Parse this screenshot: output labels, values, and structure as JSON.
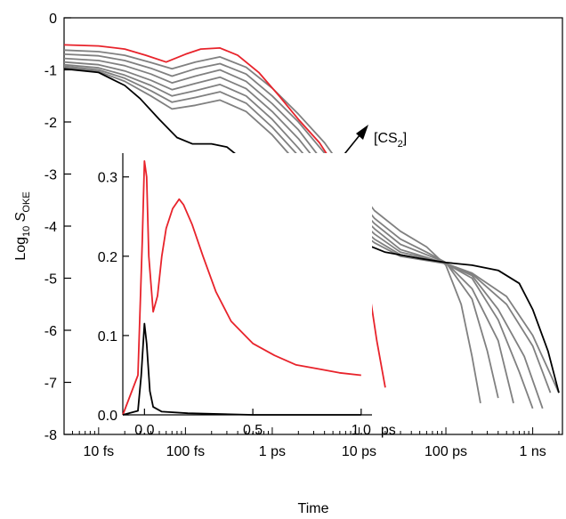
{
  "chart_data": [
    {
      "type": "line",
      "panel": "main",
      "xlabel": "Time",
      "ylabel_main": "Log",
      "ylabel_sub": "10",
      "ylabel_var": "S",
      "ylabel_var_sub": "OKE",
      "x_scale": "log",
      "x_unit": "s",
      "xlim": [
        4e-15,
        2.2e-09
      ],
      "ylim": [
        -8,
        0
      ],
      "y_ticks": [
        "0",
        "-1",
        "-2",
        "-3",
        "-4",
        "-5",
        "-6",
        "-7",
        "-8"
      ],
      "y_tick_values": [
        0,
        -1,
        -2,
        -3,
        -4,
        -5,
        -6,
        -7,
        -8
      ],
      "x_ticks": [
        "10 fs",
        "100 fs",
        "1 ps",
        "10 ps",
        "100 ps",
        "1 ns"
      ],
      "x_tick_values": [
        1e-14,
        1e-13,
        1e-12,
        1e-11,
        1e-10,
        1e-09
      ],
      "annotation": {
        "text": "[CS",
        "sub": "2",
        "close": "]"
      },
      "grid": false,
      "colors": {
        "red": "#e8232b",
        "black": "#000000",
        "gray": "#808080"
      },
      "series": [
        {
          "color": "red",
          "x": [
            4e-15,
            1e-14,
            2e-14,
            3.5e-14,
            6e-14,
            1e-13,
            1.5e-13,
            2.5e-13,
            4e-13,
            7e-13,
            1.2e-12,
            2e-12,
            3.5e-12,
            6e-12,
            8e-12,
            1e-11,
            1.3e-11,
            1.6e-11,
            2e-11
          ],
          "y": [
            -0.52,
            -0.54,
            -0.6,
            -0.72,
            -0.85,
            -0.7,
            -0.6,
            -0.58,
            -0.72,
            -1.05,
            -1.5,
            -1.95,
            -2.4,
            -3.0,
            -3.5,
            -4.2,
            -5.2,
            -6.2,
            -7.1
          ]
        },
        {
          "color": "gray",
          "x": [
            4e-15,
            1e-14,
            2e-14,
            4e-14,
            7e-14,
            1.3e-13,
            2.5e-13,
            5e-13,
            1e-12,
            2e-12,
            4e-12,
            8e-12,
            1.5e-11,
            3e-11,
            6e-11,
            1e-10,
            1.5e-10,
            2e-10,
            2.5e-10
          ],
          "y": [
            -0.62,
            -0.65,
            -0.72,
            -0.86,
            -0.98,
            -0.85,
            -0.75,
            -0.95,
            -1.35,
            -1.85,
            -2.4,
            -3.1,
            -3.7,
            -4.1,
            -4.4,
            -4.75,
            -5.5,
            -6.5,
            -7.4
          ]
        },
        {
          "color": "gray",
          "x": [
            4e-15,
            1e-14,
            2e-14,
            4e-14,
            7e-14,
            1.3e-13,
            2.5e-13,
            5e-13,
            1e-12,
            2e-12,
            4e-12,
            8e-12,
            1.5e-11,
            3e-11,
            6e-11,
            1e-10,
            2e-10,
            3e-10,
            4e-10
          ],
          "y": [
            -0.7,
            -0.73,
            -0.82,
            -0.97,
            -1.12,
            -0.98,
            -0.88,
            -1.08,
            -1.5,
            -2.0,
            -2.6,
            -3.3,
            -3.85,
            -4.25,
            -4.5,
            -4.7,
            -5.4,
            -6.4,
            -7.3
          ]
        },
        {
          "color": "gray",
          "x": [
            4e-15,
            1e-14,
            2e-14,
            4e-14,
            7e-14,
            1.3e-13,
            2.5e-13,
            5e-13,
            1e-12,
            2e-12,
            4e-12,
            8e-12,
            1.5e-11,
            3e-11,
            6e-11,
            1e-10,
            2e-10,
            4e-10,
            6e-10
          ],
          "y": [
            -0.78,
            -0.82,
            -0.92,
            -1.08,
            -1.25,
            -1.12,
            -1.0,
            -1.22,
            -1.65,
            -2.15,
            -2.8,
            -3.45,
            -3.95,
            -4.35,
            -4.55,
            -4.7,
            -5.2,
            -6.2,
            -7.4
          ]
        },
        {
          "color": "gray",
          "x": [
            4e-15,
            1e-14,
            2e-14,
            4e-14,
            7e-14,
            1.3e-13,
            2.5e-13,
            5e-13,
            1e-12,
            2e-12,
            4e-12,
            8e-12,
            1.5e-11,
            3e-11,
            6e-11,
            1e-10,
            2e-10,
            4e-10,
            7e-10,
            1e-09
          ],
          "y": [
            -0.85,
            -0.9,
            -1.02,
            -1.2,
            -1.38,
            -1.26,
            -1.14,
            -1.36,
            -1.8,
            -2.32,
            -2.95,
            -3.6,
            -4.05,
            -4.45,
            -4.6,
            -4.72,
            -5.0,
            -5.8,
            -6.8,
            -7.5
          ]
        },
        {
          "color": "gray",
          "x": [
            4e-15,
            1e-14,
            2e-14,
            4e-14,
            7e-14,
            1.3e-13,
            2.5e-13,
            5e-13,
            1e-12,
            2e-12,
            4e-12,
            8e-12,
            1.5e-11,
            3e-11,
            6e-11,
            1e-10,
            2e-10,
            4e-10,
            8e-10,
            1.3e-09
          ],
          "y": [
            -0.9,
            -0.96,
            -1.1,
            -1.3,
            -1.5,
            -1.4,
            -1.28,
            -1.5,
            -1.95,
            -2.5,
            -3.1,
            -3.72,
            -4.15,
            -4.5,
            -4.62,
            -4.72,
            -4.95,
            -5.6,
            -6.5,
            -7.5
          ]
        },
        {
          "color": "gray",
          "x": [
            4e-15,
            1e-14,
            2e-14,
            4e-14,
            7e-14,
            1.3e-13,
            2.5e-13,
            5e-13,
            1e-12,
            2e-12,
            4e-12,
            8e-12,
            1.5e-11,
            3e-11,
            6e-11,
            1e-10,
            2e-10,
            5e-10,
            1e-09,
            1.6e-09
          ],
          "y": [
            -0.93,
            -1.0,
            -1.16,
            -1.4,
            -1.62,
            -1.53,
            -1.42,
            -1.64,
            -2.1,
            -2.65,
            -3.25,
            -3.85,
            -4.25,
            -4.55,
            -4.65,
            -4.72,
            -4.92,
            -5.5,
            -6.3,
            -7.2
          ]
        },
        {
          "color": "gray",
          "x": [
            4e-15,
            1e-14,
            2e-14,
            4e-14,
            7e-14,
            1.3e-13,
            2.5e-13,
            5e-13,
            1e-12,
            2e-12,
            4e-12,
            8e-12,
            1.5e-11,
            3e-11,
            6e-11,
            1e-10,
            2e-10,
            5e-10,
            1e-09,
            2e-09
          ],
          "y": [
            -0.95,
            -1.03,
            -1.22,
            -1.5,
            -1.75,
            -1.68,
            -1.58,
            -1.8,
            -2.25,
            -2.82,
            -3.4,
            -3.95,
            -4.32,
            -4.58,
            -4.66,
            -4.72,
            -4.9,
            -5.35,
            -6.1,
            -7.2
          ]
        },
        {
          "color": "black",
          "x": [
            4e-15,
            1e-14,
            2e-14,
            3e-14,
            5e-14,
            8e-14,
            1.2e-13,
            2e-13,
            3e-13,
            5e-13,
            8e-13,
            1.2e-12,
            2e-12,
            3e-12,
            5e-12,
            1e-11,
            2e-11,
            5e-11,
            1e-10,
            2e-10,
            4e-10,
            7e-10,
            1e-09,
            1.5e-09,
            2e-09
          ],
          "y": [
            -0.98,
            -1.05,
            -1.3,
            -1.55,
            -1.95,
            -2.3,
            -2.42,
            -2.42,
            -2.48,
            -2.78,
            -3.1,
            -3.35,
            -3.6,
            -3.85,
            -4.05,
            -4.3,
            -4.5,
            -4.62,
            -4.7,
            -4.75,
            -4.85,
            -5.1,
            -5.6,
            -6.4,
            -7.2
          ]
        }
      ]
    },
    {
      "type": "line",
      "panel": "inset",
      "xlabel": "",
      "x_unit": "ps",
      "xlim": [
        -0.1,
        1.05
      ],
      "ylim": [
        0,
        0.33
      ],
      "x_ticks": [
        "0.0",
        "0.5",
        "1.0"
      ],
      "x_tick_values": [
        0,
        0.5,
        1.0
      ],
      "y_ticks": [
        "0.0",
        "0.1",
        "0.2",
        "0.3"
      ],
      "y_tick_values": [
        0,
        0.1,
        0.2,
        0.3
      ],
      "series": [
        {
          "color": "red",
          "x": [
            -0.1,
            -0.03,
            -0.01,
            0.0,
            0.01,
            0.02,
            0.04,
            0.06,
            0.08,
            0.1,
            0.13,
            0.16,
            0.18,
            0.22,
            0.27,
            0.33,
            0.4,
            0.5,
            0.6,
            0.7,
            0.8,
            0.9,
            1.0
          ],
          "y": [
            0.0,
            0.05,
            0.22,
            0.32,
            0.3,
            0.2,
            0.13,
            0.15,
            0.2,
            0.235,
            0.26,
            0.272,
            0.265,
            0.24,
            0.2,
            0.155,
            0.118,
            0.09,
            0.075,
            0.063,
            0.058,
            0.053,
            0.05
          ]
        },
        {
          "color": "black",
          "x": [
            -0.1,
            -0.03,
            -0.015,
            0.0,
            0.01,
            0.025,
            0.04,
            0.08,
            0.2,
            0.5,
            1.0
          ],
          "y": [
            0.0,
            0.005,
            0.05,
            0.115,
            0.09,
            0.03,
            0.01,
            0.004,
            0.002,
            0.0,
            0.0
          ]
        }
      ]
    }
  ]
}
